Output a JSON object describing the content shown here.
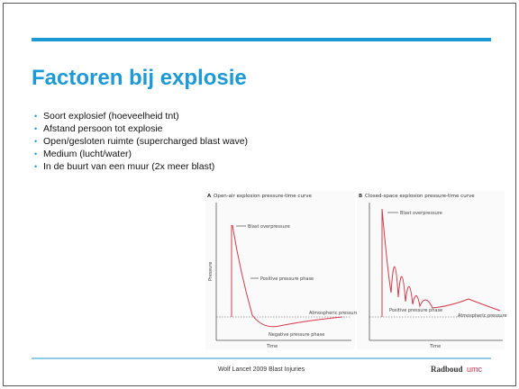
{
  "slide": {
    "title": "Factoren bij explosie",
    "bullets": [
      "Soort explosief (hoeveelheid tnt)",
      "Afstand persoon tot explosie",
      "Open/gesloten ruimte (supercharged blast wave)",
      "Medium (lucht/water)",
      "In de buurt van een muur (2x meer blast)"
    ],
    "figure": {
      "panels": [
        {
          "letter": "A",
          "title": "Open-air explosion pressure-time curve",
          "y_label": "Pressure",
          "x_label": "Time",
          "labels": [
            "Blast overpressure",
            "Positive pressure phase",
            "Atmospheric pressure",
            "Negative pressure phase"
          ]
        },
        {
          "letter": "B",
          "title": "Closed-space explosion pressure-time curve",
          "x_label": "Time",
          "labels": [
            "Blast overpressure",
            "Positive pressure phase",
            "Atmospheric pressure"
          ]
        }
      ]
    },
    "footer": {
      "source": "Wolf Lancet 2009 Blast Injuries",
      "logo_main": "Radboud",
      "logo_suffix": "umc"
    }
  }
}
